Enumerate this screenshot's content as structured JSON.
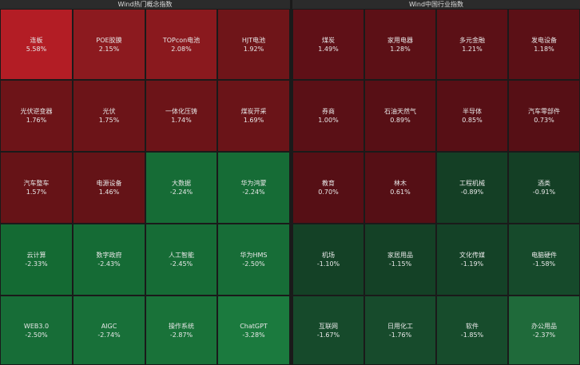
{
  "panels": [
    {
      "title": "Wind热门概念指数",
      "cells": [
        {
          "name": "连板",
          "change": "5.58%",
          "color": "#b31d25"
        },
        {
          "name": "POE胶膜",
          "change": "2.15%",
          "color": "#8c1a1f"
        },
        {
          "name": "TOPcon电池",
          "change": "2.08%",
          "color": "#8a191e"
        },
        {
          "name": "HJT电池",
          "change": "1.92%",
          "color": "#6f1519"
        },
        {
          "name": "光伏逆变器",
          "change": "1.76%",
          "color": "#6d1418"
        },
        {
          "name": "光伏",
          "change": "1.75%",
          "color": "#6c1418"
        },
        {
          "name": "一体化压铸",
          "change": "1.74%",
          "color": "#6c1418"
        },
        {
          "name": "煤炭开采",
          "change": "1.69%",
          "color": "#6a1418"
        },
        {
          "name": "汽车整车",
          "change": "1.57%",
          "color": "#661317"
        },
        {
          "name": "电源设备",
          "change": "1.46%",
          "color": "#641317"
        },
        {
          "name": "大数据",
          "change": "-2.24%",
          "color": "#166c36"
        },
        {
          "name": "华为鸿蒙",
          "change": "-2.24%",
          "color": "#166c36"
        },
        {
          "name": "云计算",
          "change": "-2.33%",
          "color": "#146a33"
        },
        {
          "name": "数字政府",
          "change": "-2.43%",
          "color": "#156b35"
        },
        {
          "name": "人工智能",
          "change": "-2.45%",
          "color": "#166c36"
        },
        {
          "name": "华为HMS",
          "change": "-2.50%",
          "color": "#176d37"
        },
        {
          "name": "WEB3.0",
          "change": "-2.50%",
          "color": "#176d37"
        },
        {
          "name": "AIGC",
          "change": "-2.74%",
          "color": "#187039"
        },
        {
          "name": "操作系统",
          "change": "-2.87%",
          "color": "#197239"
        },
        {
          "name": "ChatGPT",
          "change": "-3.28%",
          "color": "#1b7a3e"
        }
      ]
    },
    {
      "title": "Wind中国行业指数",
      "cells": [
        {
          "name": "煤炭",
          "change": "1.49%",
          "color": "#5f1017"
        },
        {
          "name": "家用电器",
          "change": "1.28%",
          "color": "#5c1016"
        },
        {
          "name": "多元金融",
          "change": "1.21%",
          "color": "#5b1016"
        },
        {
          "name": "发电设备",
          "change": "1.18%",
          "color": "#5b1016"
        },
        {
          "name": "券商",
          "change": "1.00%",
          "color": "#5a1016"
        },
        {
          "name": "石油天然气",
          "change": "0.89%",
          "color": "#570f15"
        },
        {
          "name": "半导体",
          "change": "0.85%",
          "color": "#570f15"
        },
        {
          "name": "汽车零部件",
          "change": "0.73%",
          "color": "#560f15"
        },
        {
          "name": "教育",
          "change": "0.70%",
          "color": "#560f15"
        },
        {
          "name": "林木",
          "change": "0.61%",
          "color": "#550f15"
        },
        {
          "name": "工程机械",
          "change": "-0.89%",
          "color": "#143f25"
        },
        {
          "name": "酒类",
          "change": "-0.91%",
          "color": "#143f25"
        },
        {
          "name": "机场",
          "change": "-1.10%",
          "color": "#144126"
        },
        {
          "name": "家居用品",
          "change": "-1.15%",
          "color": "#144126"
        },
        {
          "name": "文化传媒",
          "change": "-1.19%",
          "color": "#144227"
        },
        {
          "name": "电脑硬件",
          "change": "-1.58%",
          "color": "#164a2b"
        },
        {
          "name": "互联网",
          "change": "-1.67%",
          "color": "#164a2b"
        },
        {
          "name": "日用化工",
          "change": "-1.76%",
          "color": "#174b2c"
        },
        {
          "name": "软件",
          "change": "-1.85%",
          "color": "#174c2c"
        },
        {
          "name": "办公用品",
          "change": "-2.37%",
          "color": "#1f6a3a"
        }
      ]
    }
  ]
}
